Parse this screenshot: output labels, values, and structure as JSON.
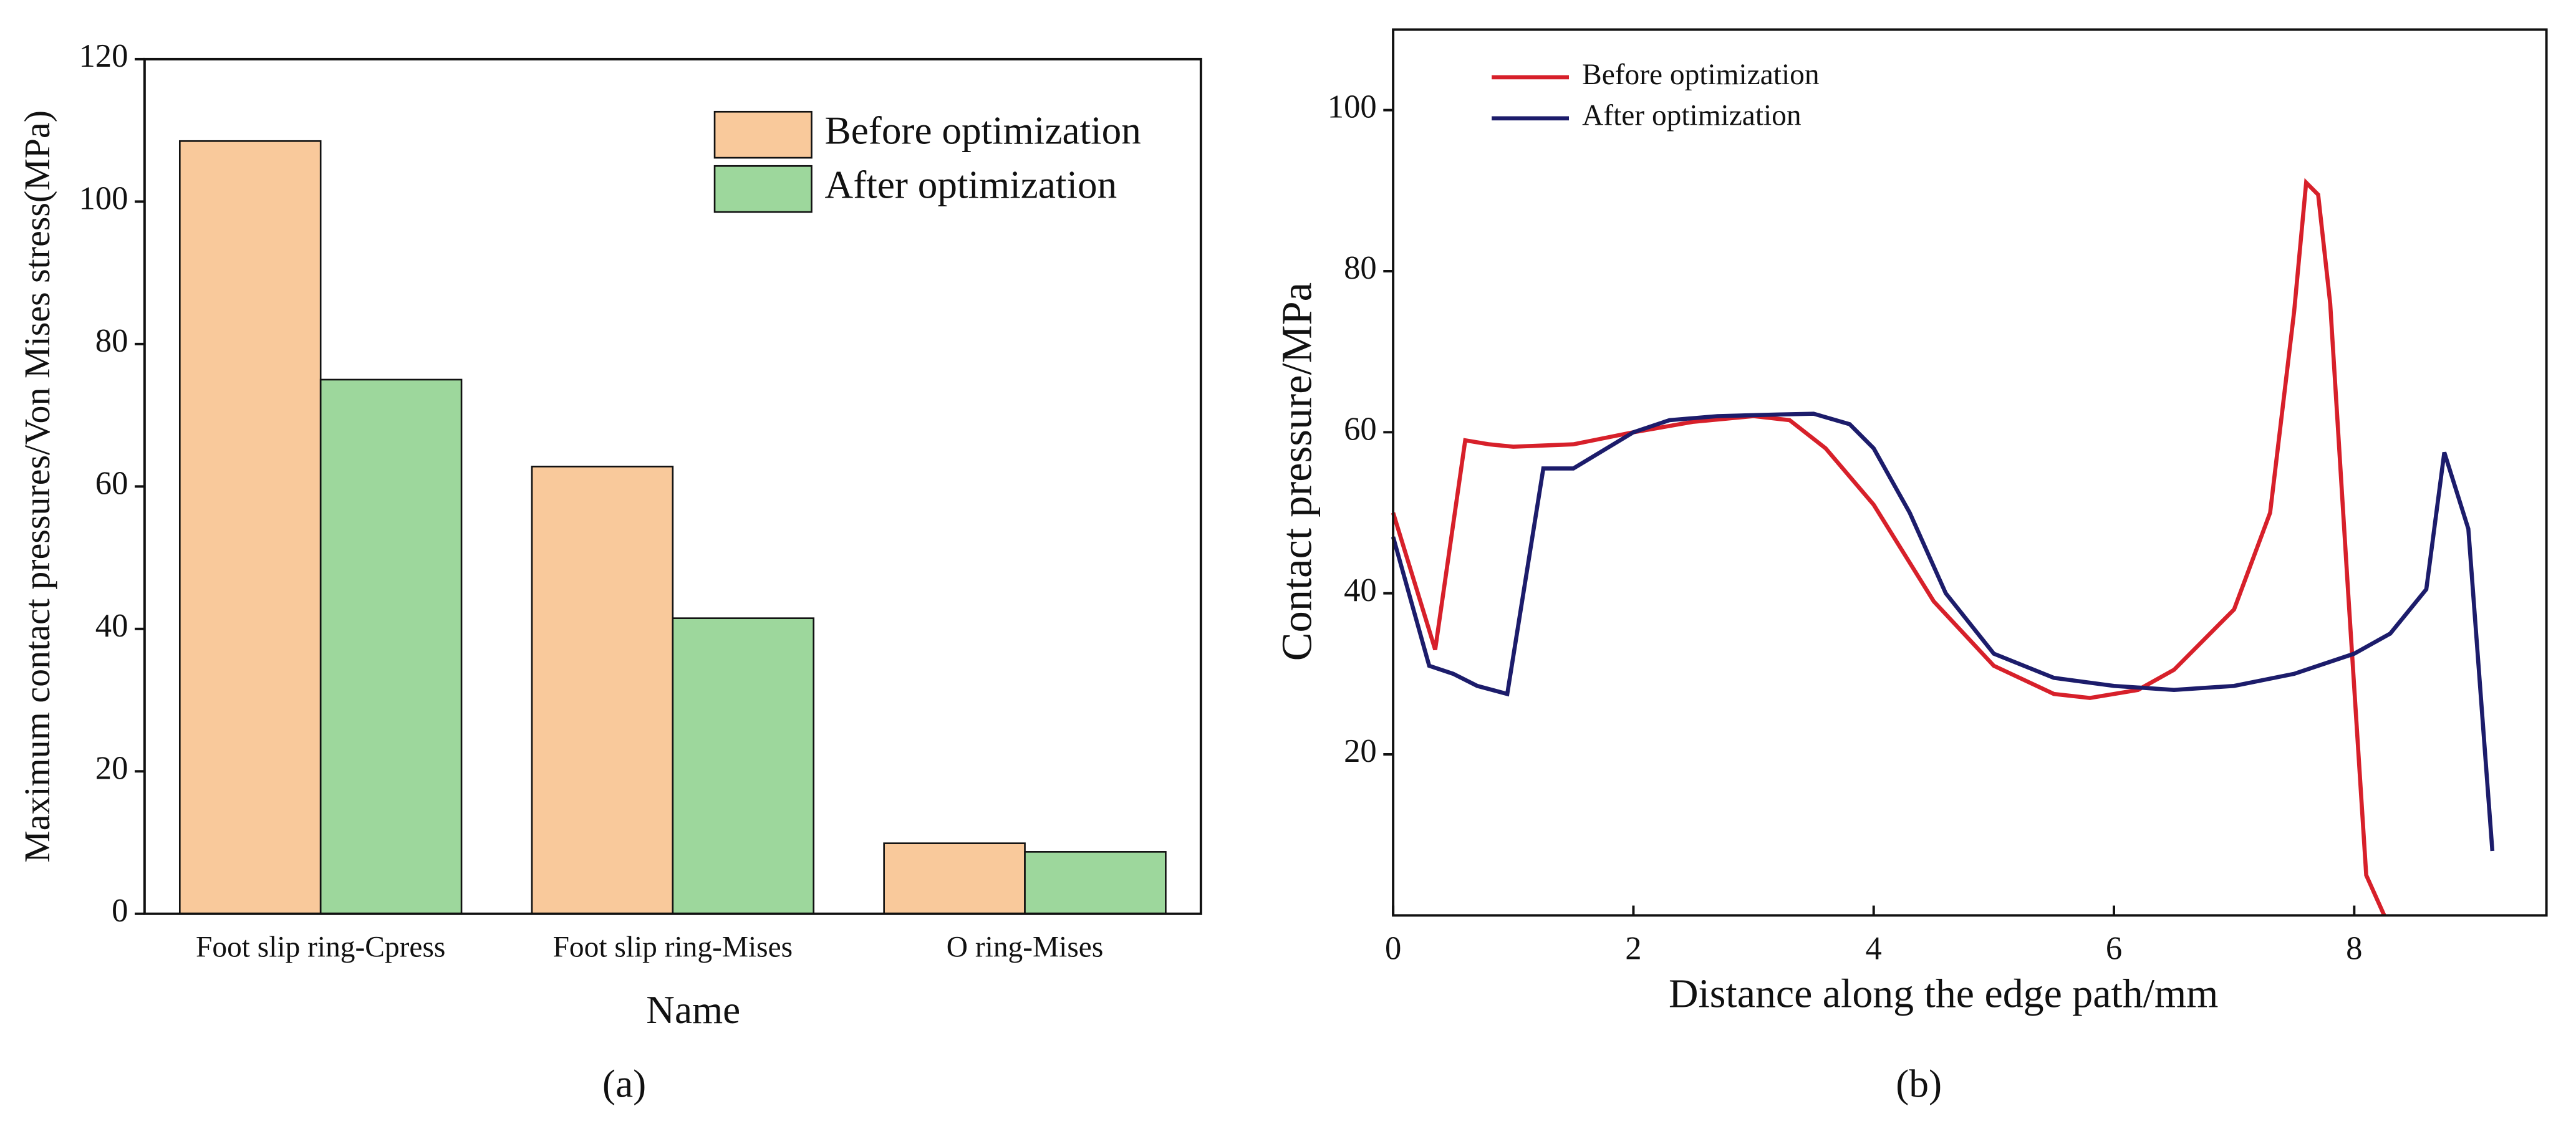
{
  "chart_data": [
    {
      "type": "bar",
      "caption": "(a)",
      "x_label": "Name",
      "y_label": "Maximum contact pressures/Von Mises stress(MPa)",
      "categories": [
        "Foot slip ring-Cpress",
        "Foot slip ring-Mises",
        "O ring-Mises"
      ],
      "series": [
        {
          "name": "Before optimization",
          "color": "#f9c99b",
          "values": [
            108.5,
            62.8,
            9.9
          ]
        },
        {
          "name": "After optimization",
          "color": "#9dd79c",
          "values": [
            75,
            41.5,
            8.7
          ]
        }
      ],
      "ylim": [
        0,
        120
      ],
      "yticks": [
        0,
        20,
        40,
        60,
        80,
        100,
        120
      ],
      "legend": "upper right"
    },
    {
      "type": "line",
      "caption": "(b)",
      "x_label": "Distance along the edge path/mm",
      "y_label": "Contact pressure/MPa",
      "series": [
        {
          "name": "Before optimization",
          "color": "#d7202a",
          "x": [
            0,
            0.35,
            0.6,
            0.8,
            1,
            1.5,
            2,
            2.5,
            3,
            3.3,
            3.6,
            4,
            4.5,
            5,
            5.5,
            5.8,
            6.2,
            6.5,
            7,
            7.3,
            7.5,
            7.6,
            7.7,
            7.8,
            7.95,
            8.1,
            8.25
          ],
          "values": [
            50,
            33,
            59,
            58.5,
            58.2,
            58.5,
            60,
            61.3,
            62,
            61.5,
            58,
            51,
            39,
            31,
            27.5,
            27,
            28,
            30.5,
            38,
            50,
            75,
            91,
            89.5,
            76,
            40,
            5,
            0
          ]
        },
        {
          "name": "After optimization",
          "color": "#1c1c6b",
          "x": [
            0,
            0.3,
            0.5,
            0.7,
            0.95,
            1.25,
            1.5,
            2,
            2.3,
            2.7,
            3.2,
            3.5,
            3.8,
            4,
            4.3,
            4.6,
            5,
            5.5,
            6,
            6.5,
            7,
            7.5,
            8,
            8.3,
            8.6,
            8.75,
            8.95,
            9.15
          ],
          "values": [
            47,
            31,
            30,
            28.5,
            27.5,
            55.5,
            55.5,
            60,
            61.5,
            62,
            62.2,
            62.3,
            61,
            58,
            50,
            40,
            32.5,
            29.5,
            28.5,
            28,
            28.5,
            30,
            32.5,
            35,
            40.5,
            57.5,
            48,
            8
          ]
        }
      ],
      "xlim": [
        0,
        9.6
      ],
      "xticks": [
        0,
        2,
        4,
        6,
        8
      ],
      "ylim": [
        0,
        110
      ],
      "yticks": [
        20,
        40,
        60,
        80,
        100
      ],
      "legend": "upper left"
    }
  ]
}
